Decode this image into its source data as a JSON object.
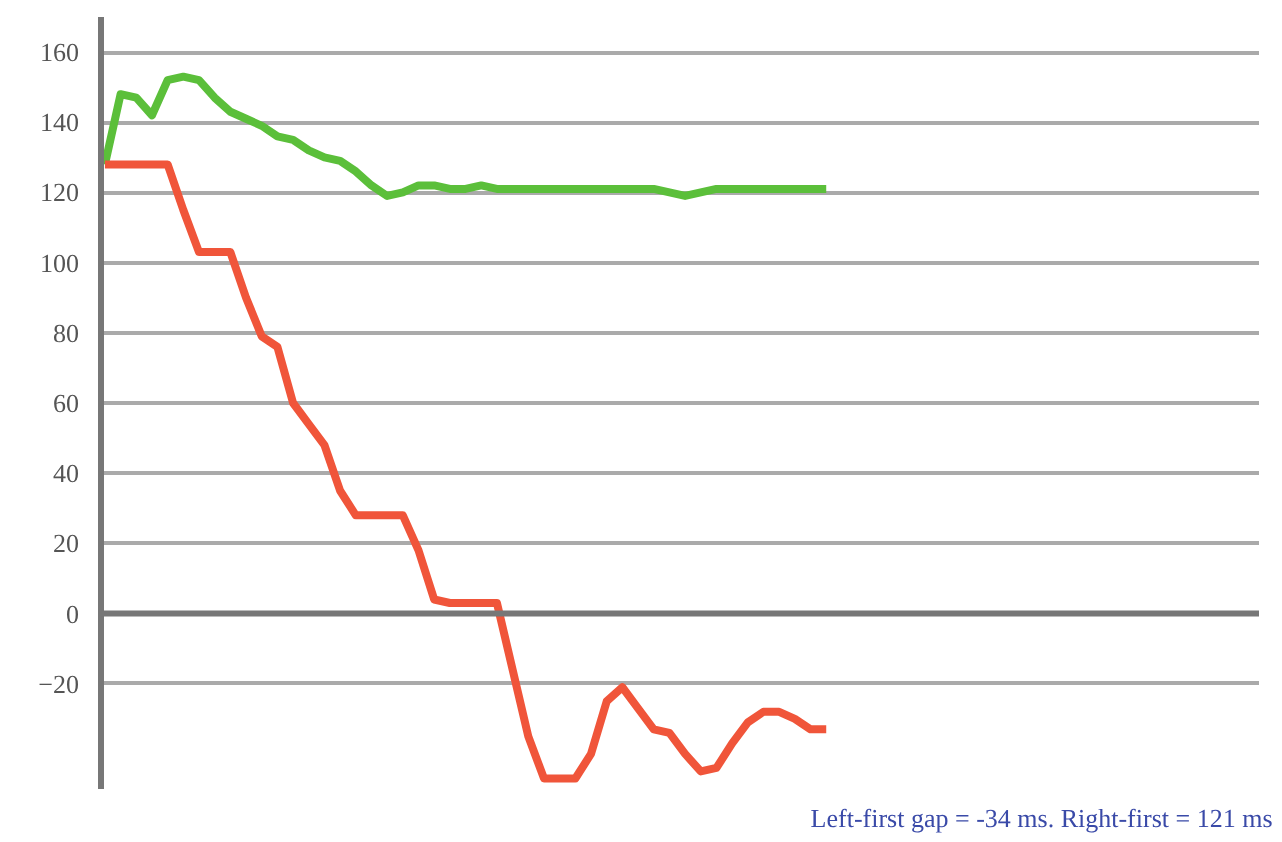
{
  "chart_data": {
    "type": "line",
    "categories": [
      null,
      null,
      null,
      null,
      null,
      null,
      null,
      null,
      null,
      null,
      null,
      null,
      null,
      null,
      null,
      null,
      null,
      null,
      null,
      null,
      null,
      null,
      null,
      null,
      null,
      null,
      null,
      null,
      null,
      null,
      null,
      null,
      null,
      null,
      null,
      null,
      null,
      null,
      null,
      null,
      null,
      null,
      null,
      null,
      null,
      null,
      null
    ],
    "series": [
      {
        "color": "#5bbf3a",
        "values": [
          128,
          148,
          147,
          142,
          152,
          153,
          152,
          147,
          143,
          141,
          139,
          136,
          135,
          132,
          130,
          129,
          126,
          122,
          119,
          120,
          122,
          122,
          121,
          121,
          122,
          121,
          121,
          121,
          121,
          121,
          121,
          121,
          121,
          121,
          121,
          121,
          120,
          119,
          120,
          121,
          121,
          121,
          121,
          121,
          121,
          121,
          121
        ]
      },
      {
        "color": "#f0553a",
        "values": [
          128,
          128,
          128,
          128,
          128,
          115,
          103,
          103,
          103,
          90,
          79,
          76,
          60,
          54,
          48,
          35,
          28,
          28,
          28,
          28,
          18,
          4,
          3,
          3,
          3,
          3,
          -16,
          -35,
          -47,
          -47,
          -47,
          -40,
          -25,
          -21,
          -27,
          -33,
          -34,
          -40,
          -45,
          -44,
          -37,
          -31,
          -28,
          -28,
          -30,
          -33,
          -33
        ]
      }
    ],
    "ylim": [
      -50,
      170
    ],
    "yticks": [
      -20,
      0,
      20,
      40,
      60,
      80,
      100,
      120,
      140,
      160
    ],
    "grid": "y",
    "line_style": "solid",
    "marker": "none",
    "ref_lines": [
      {
        "axis": "y",
        "value": 0,
        "color": "#777777"
      }
    ],
    "annotations": [
      "Left-first gap = -34 ms.  Right-first = 121 ms"
    ]
  }
}
